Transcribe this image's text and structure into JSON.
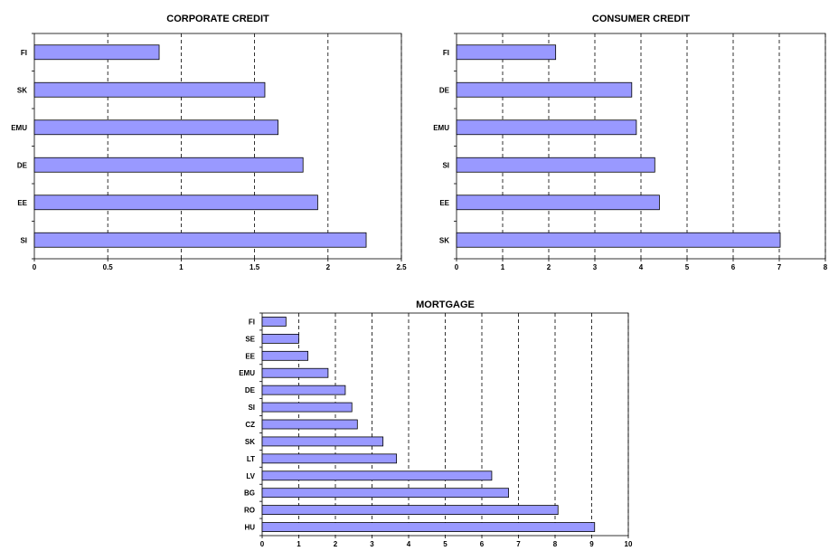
{
  "colors": {
    "bar": "#9999ff",
    "bar_stroke": "#000000",
    "grid": "#000000"
  },
  "chart_data": [
    {
      "type": "bar",
      "orientation": "horizontal",
      "title": "CORPORATE CREDIT",
      "categories": [
        "FI",
        "SK",
        "EMU",
        "DE",
        "EE",
        "SI"
      ],
      "values": [
        0.85,
        1.57,
        1.66,
        1.83,
        1.93,
        2.26
      ],
      "xlim": [
        0,
        2.5
      ],
      "xticks": [
        "0",
        "0.5",
        "1",
        "1.5",
        "2",
        "2.5"
      ],
      "grid": "vertical dashed"
    },
    {
      "type": "bar",
      "orientation": "horizontal",
      "title": "CONSUMER CREDIT",
      "categories": [
        "FI",
        "DE",
        "EMU",
        "SI",
        "EE",
        "SK"
      ],
      "values": [
        2.15,
        3.8,
        3.9,
        4.3,
        4.4,
        7.02
      ],
      "xlim": [
        0,
        8
      ],
      "xticks": [
        "0",
        "1",
        "2",
        "3",
        "4",
        "5",
        "6",
        "7",
        "8"
      ],
      "grid": "vertical dashed"
    },
    {
      "type": "bar",
      "orientation": "horizontal",
      "title": "MORTGAGE",
      "categories": [
        "FI",
        "SE",
        "EE",
        "EMU",
        "DE",
        "SI",
        "CZ",
        "SK",
        "LT",
        "LV",
        "BG",
        "RO",
        "HU"
      ],
      "values": [
        0.65,
        1.0,
        1.25,
        1.8,
        2.27,
        2.45,
        2.6,
        3.3,
        3.67,
        6.27,
        6.73,
        8.08,
        9.08
      ],
      "xlim": [
        0,
        10
      ],
      "xticks": [
        "0",
        "1",
        "2",
        "3",
        "4",
        "5",
        "6",
        "7",
        "8",
        "9",
        "10"
      ],
      "grid": "vertical dashed"
    }
  ]
}
